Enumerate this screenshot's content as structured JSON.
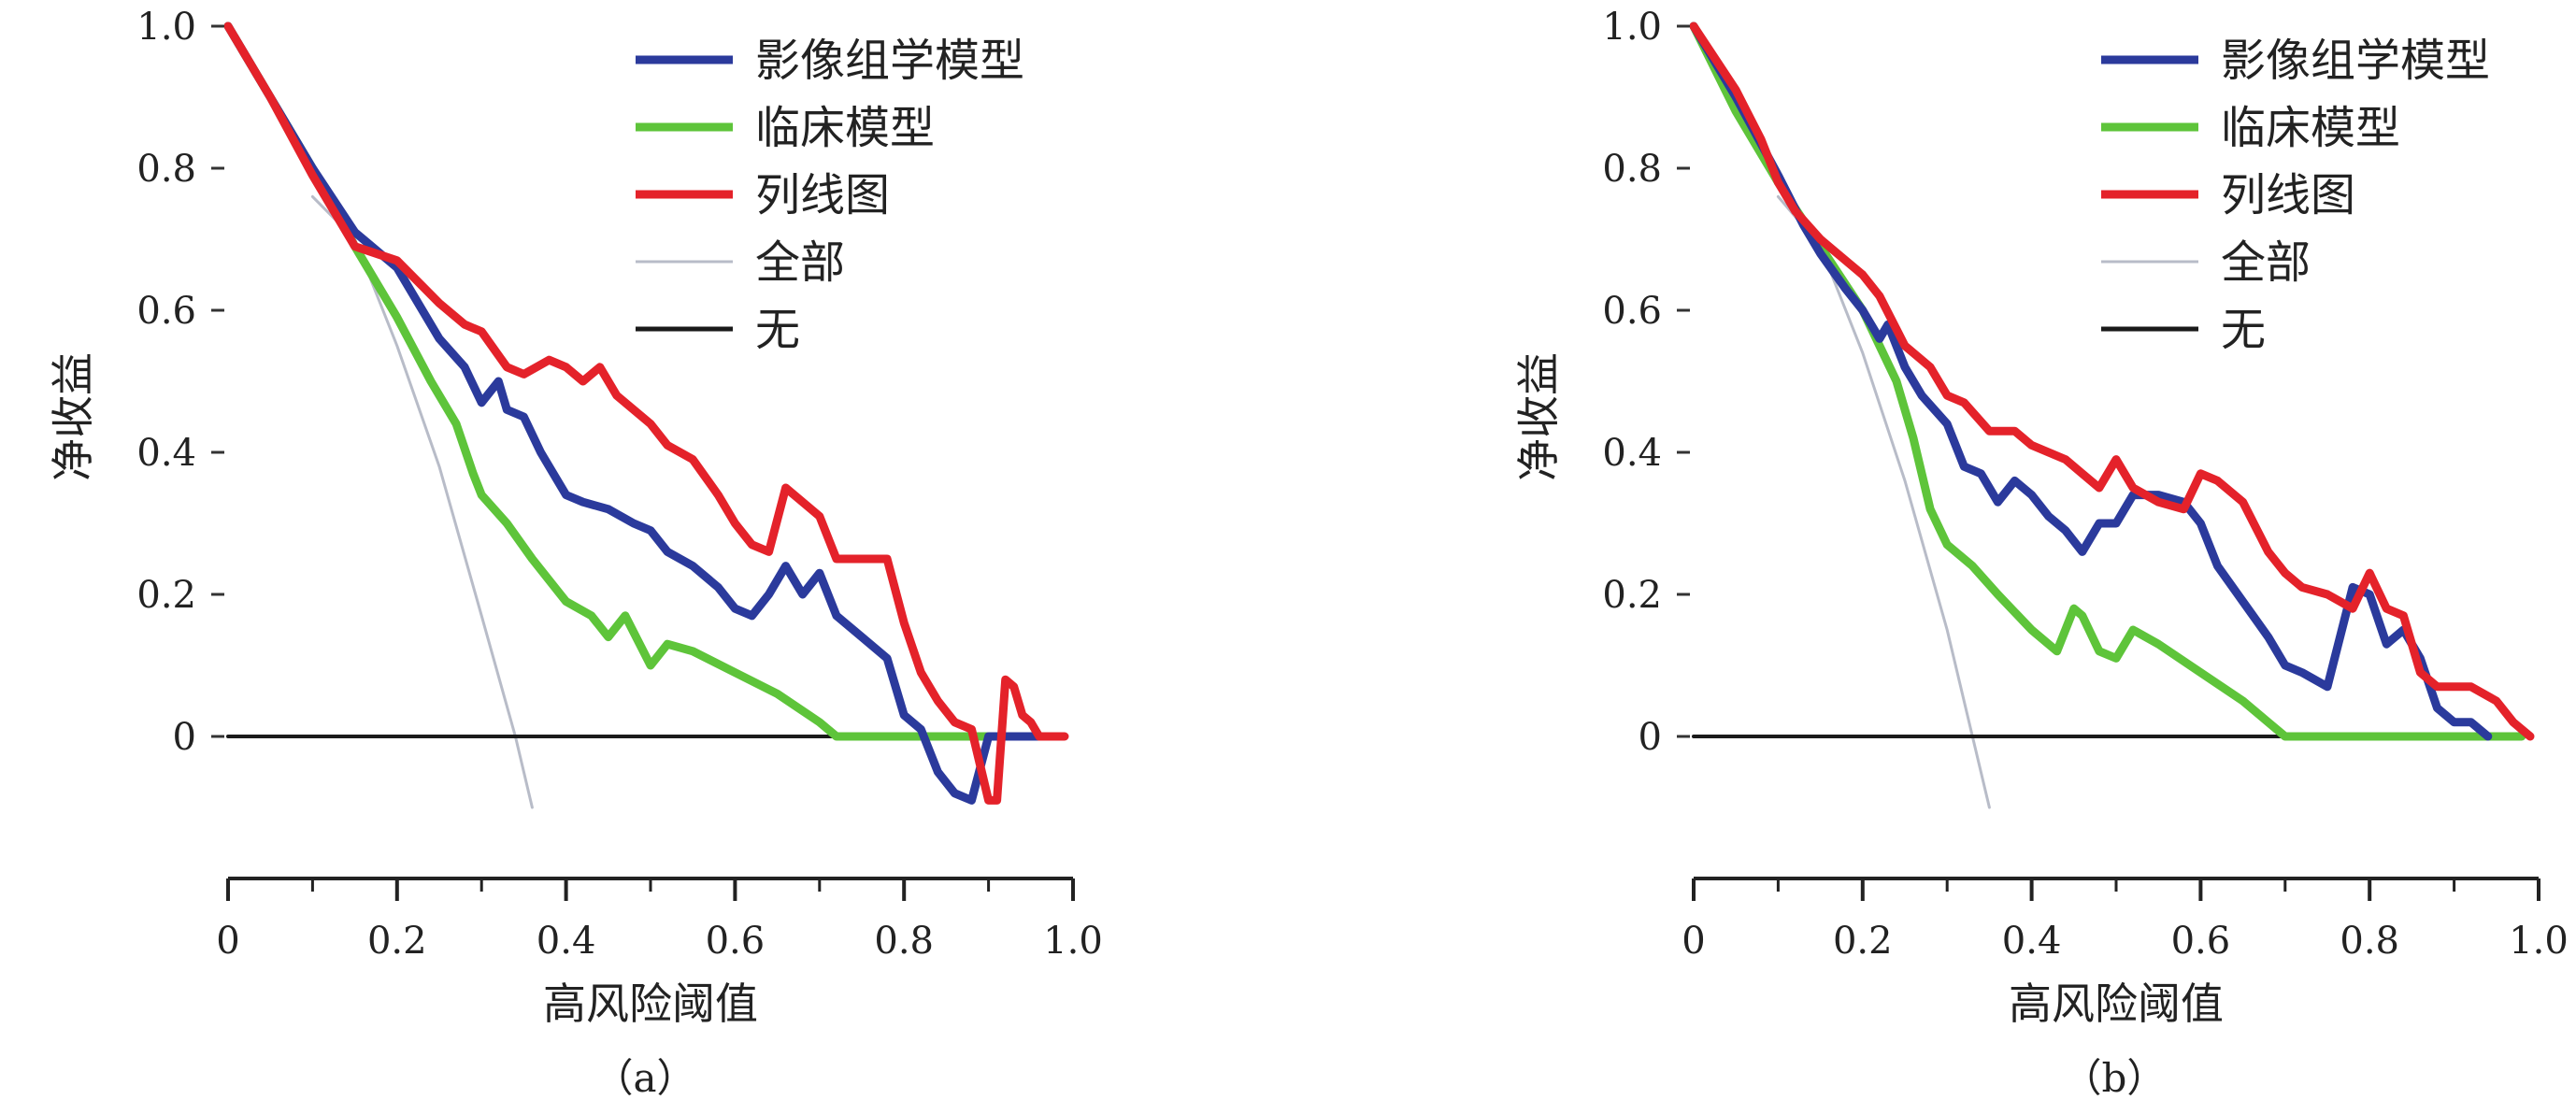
{
  "colors": {
    "影像组学模型": "#2b3a9c",
    "临床模型": "#5ec43a",
    "列线图": "#e4222a",
    "全部": "#b8bcc8",
    "无": "#1a1a1a"
  },
  "chart_data": [
    {
      "type": "line",
      "caption": "（a）",
      "xlabel": "高风险阈值",
      "ylabel": "净收益",
      "xlim": [
        0,
        1.0
      ],
      "ylim": [
        -0.1,
        1.0
      ],
      "xticks": [
        "0",
        "0.2",
        "0.4",
        "0.6",
        "0.8",
        "1.0"
      ],
      "yticks": [
        "0",
        "0.2",
        "0.4",
        "0.6",
        "0.8",
        "1.0"
      ],
      "legend_position": "top-right",
      "series": [
        {
          "name": "影像组学模型",
          "x": [
            0,
            0.05,
            0.1,
            0.15,
            0.2,
            0.25,
            0.28,
            0.3,
            0.32,
            0.33,
            0.35,
            0.37,
            0.4,
            0.42,
            0.45,
            0.48,
            0.5,
            0.52,
            0.55,
            0.58,
            0.6,
            0.62,
            0.64,
            0.66,
            0.68,
            0.7,
            0.72,
            0.75,
            0.78,
            0.8,
            0.82,
            0.84,
            0.86,
            0.88,
            0.9,
            0.92,
            0.94,
            0.96
          ],
          "y": [
            1.0,
            0.9,
            0.8,
            0.71,
            0.66,
            0.56,
            0.52,
            0.47,
            0.5,
            0.46,
            0.45,
            0.4,
            0.34,
            0.33,
            0.32,
            0.3,
            0.29,
            0.26,
            0.24,
            0.21,
            0.18,
            0.17,
            0.2,
            0.24,
            0.2,
            0.23,
            0.17,
            0.14,
            0.11,
            0.03,
            0.01,
            -0.05,
            -0.08,
            -0.09,
            0.0,
            0.0,
            0.0,
            0.0
          ]
        },
        {
          "name": "临床模型",
          "x": [
            0,
            0.05,
            0.1,
            0.15,
            0.2,
            0.24,
            0.27,
            0.29,
            0.3,
            0.33,
            0.36,
            0.4,
            0.43,
            0.45,
            0.47,
            0.5,
            0.52,
            0.55,
            0.6,
            0.65,
            0.7,
            0.72,
            0.8,
            0.9,
            0.96
          ],
          "y": [
            1.0,
            0.9,
            0.8,
            0.69,
            0.59,
            0.5,
            0.44,
            0.37,
            0.34,
            0.3,
            0.25,
            0.19,
            0.17,
            0.14,
            0.17,
            0.1,
            0.13,
            0.12,
            0.09,
            0.06,
            0.02,
            0.0,
            0.0,
            0.0,
            0.0
          ]
        },
        {
          "name": "列线图",
          "x": [
            0,
            0.05,
            0.1,
            0.15,
            0.2,
            0.25,
            0.28,
            0.3,
            0.33,
            0.35,
            0.38,
            0.4,
            0.42,
            0.44,
            0.46,
            0.5,
            0.52,
            0.55,
            0.58,
            0.6,
            0.62,
            0.64,
            0.66,
            0.68,
            0.7,
            0.72,
            0.75,
            0.78,
            0.8,
            0.82,
            0.84,
            0.86,
            0.88,
            0.9,
            0.91,
            0.92,
            0.93,
            0.94,
            0.95,
            0.96,
            0.99
          ],
          "y": [
            1.0,
            0.9,
            0.79,
            0.69,
            0.67,
            0.61,
            0.58,
            0.57,
            0.52,
            0.51,
            0.53,
            0.52,
            0.5,
            0.52,
            0.48,
            0.44,
            0.41,
            0.39,
            0.34,
            0.3,
            0.27,
            0.26,
            0.35,
            0.33,
            0.31,
            0.25,
            0.25,
            0.25,
            0.16,
            0.09,
            0.05,
            0.02,
            0.01,
            -0.09,
            -0.09,
            0.08,
            0.07,
            0.03,
            0.02,
            0.0,
            0.0
          ]
        },
        {
          "name": "全部",
          "x": [
            0.1,
            0.15,
            0.2,
            0.25,
            0.3,
            0.34,
            0.36
          ],
          "y": [
            0.76,
            0.7,
            0.55,
            0.38,
            0.17,
            0.0,
            -0.1
          ]
        },
        {
          "name": "无",
          "x": [
            0,
            0.99
          ],
          "y": [
            0,
            0
          ]
        }
      ]
    },
    {
      "type": "line",
      "caption": "（b）",
      "xlabel": "高风险阈值",
      "ylabel": "净收益",
      "xlim": [
        0,
        1.0
      ],
      "ylim": [
        -0.1,
        1.0
      ],
      "xticks": [
        "0",
        "0.2",
        "0.4",
        "0.6",
        "0.8",
        "1.0"
      ],
      "yticks": [
        "0",
        "0.2",
        "0.4",
        "0.6",
        "0.8",
        "1.0"
      ],
      "legend_position": "top-right",
      "series": [
        {
          "name": "影像组学模型",
          "x": [
            0,
            0.05,
            0.1,
            0.13,
            0.15,
            0.18,
            0.2,
            0.22,
            0.23,
            0.25,
            0.27,
            0.3,
            0.32,
            0.34,
            0.36,
            0.38,
            0.4,
            0.42,
            0.44,
            0.46,
            0.48,
            0.5,
            0.52,
            0.55,
            0.58,
            0.6,
            0.62,
            0.65,
            0.68,
            0.7,
            0.72,
            0.75,
            0.78,
            0.8,
            0.82,
            0.84,
            0.86,
            0.88,
            0.9,
            0.92,
            0.94
          ],
          "y": [
            1.0,
            0.9,
            0.79,
            0.72,
            0.68,
            0.63,
            0.6,
            0.56,
            0.58,
            0.52,
            0.48,
            0.44,
            0.38,
            0.37,
            0.33,
            0.36,
            0.34,
            0.31,
            0.29,
            0.26,
            0.3,
            0.3,
            0.34,
            0.34,
            0.33,
            0.3,
            0.24,
            0.19,
            0.14,
            0.1,
            0.09,
            0.07,
            0.21,
            0.2,
            0.13,
            0.15,
            0.11,
            0.04,
            0.02,
            0.02,
            0.0
          ]
        },
        {
          "name": "临床模型",
          "x": [
            0,
            0.05,
            0.1,
            0.15,
            0.2,
            0.24,
            0.26,
            0.28,
            0.3,
            0.33,
            0.36,
            0.4,
            0.43,
            0.45,
            0.46,
            0.48,
            0.5,
            0.52,
            0.55,
            0.6,
            0.65,
            0.68,
            0.7,
            0.8,
            0.9,
            0.98
          ],
          "y": [
            1.0,
            0.88,
            0.78,
            0.69,
            0.6,
            0.5,
            0.42,
            0.32,
            0.27,
            0.24,
            0.2,
            0.15,
            0.12,
            0.18,
            0.17,
            0.12,
            0.11,
            0.15,
            0.13,
            0.09,
            0.05,
            0.02,
            0.0,
            0.0,
            0.0,
            0.0
          ]
        },
        {
          "name": "列线图",
          "x": [
            0,
            0.05,
            0.08,
            0.1,
            0.12,
            0.15,
            0.18,
            0.2,
            0.22,
            0.25,
            0.28,
            0.3,
            0.32,
            0.35,
            0.38,
            0.4,
            0.42,
            0.44,
            0.46,
            0.48,
            0.5,
            0.52,
            0.55,
            0.58,
            0.6,
            0.62,
            0.65,
            0.68,
            0.7,
            0.72,
            0.75,
            0.78,
            0.8,
            0.82,
            0.84,
            0.86,
            0.88,
            0.9,
            0.92,
            0.95,
            0.97,
            0.99
          ],
          "y": [
            1.0,
            0.91,
            0.84,
            0.78,
            0.74,
            0.7,
            0.67,
            0.65,
            0.62,
            0.55,
            0.52,
            0.48,
            0.47,
            0.43,
            0.43,
            0.41,
            0.4,
            0.39,
            0.37,
            0.35,
            0.39,
            0.35,
            0.33,
            0.32,
            0.37,
            0.36,
            0.33,
            0.26,
            0.23,
            0.21,
            0.2,
            0.18,
            0.23,
            0.18,
            0.17,
            0.09,
            0.07,
            0.07,
            0.07,
            0.05,
            0.02,
            0.0
          ]
        },
        {
          "name": "全部",
          "x": [
            0.1,
            0.15,
            0.2,
            0.25,
            0.3,
            0.33,
            0.35
          ],
          "y": [
            0.76,
            0.69,
            0.54,
            0.36,
            0.15,
            0.0,
            -0.1
          ]
        },
        {
          "name": "无",
          "x": [
            0,
            0.98
          ],
          "y": [
            0,
            0
          ]
        }
      ]
    }
  ]
}
